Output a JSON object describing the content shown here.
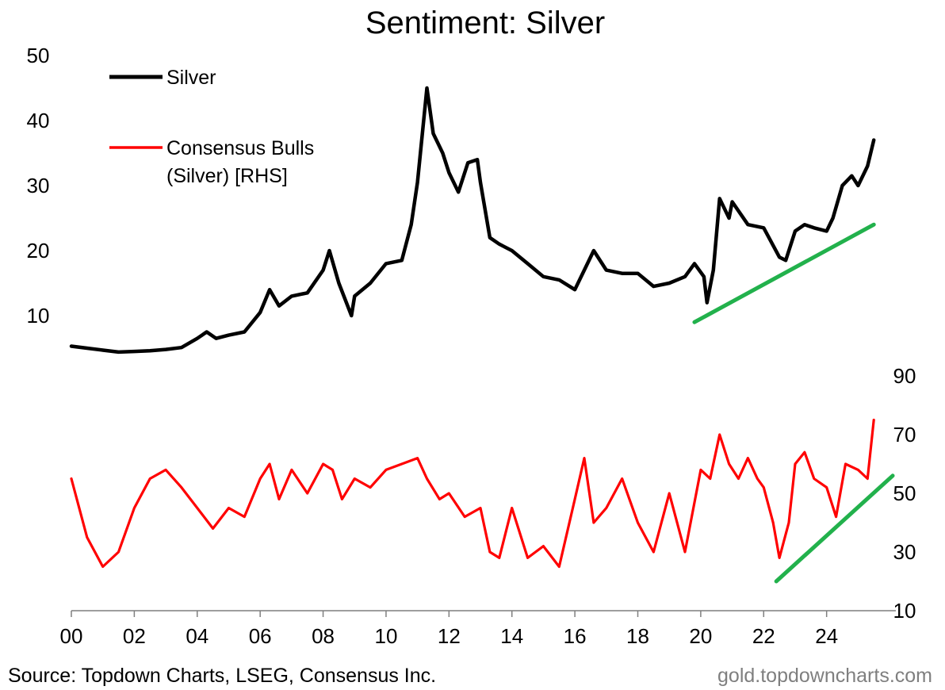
{
  "chart_data": {
    "type": "line",
    "title": "Sentiment: Silver",
    "x_tick_labels": [
      "00",
      "02",
      "04",
      "06",
      "08",
      "10",
      "12",
      "14",
      "16",
      "18",
      "20",
      "22",
      "24"
    ],
    "x_tick_years": [
      2000,
      2002,
      2004,
      2006,
      2008,
      2010,
      2012,
      2014,
      2016,
      2018,
      2020,
      2022,
      2024
    ],
    "xlim": [
      2000,
      2026.2
    ],
    "left_axis": {
      "ylim": [
        0,
        50
      ],
      "tick_labels": [
        "10",
        "20",
        "30",
        "40",
        "50"
      ],
      "tick_values": [
        10,
        20,
        30,
        40,
        50
      ]
    },
    "right_axis": {
      "ylim": [
        10,
        90
      ],
      "tick_labels": [
        "10",
        "30",
        "50",
        "70",
        "90"
      ],
      "tick_values": [
        10,
        30,
        50,
        70,
        90
      ]
    },
    "legend": [
      {
        "label": "Silver",
        "color": "#000000"
      },
      {
        "label_line1": "Consensus Bulls",
        "label_line2": "(Silver) [RHS]",
        "color": "#ff0000"
      }
    ],
    "series": [
      {
        "name": "Silver",
        "axis": "left",
        "color": "#000000",
        "x": [
          2000,
          2000.5,
          2001,
          2001.5,
          2002,
          2002.5,
          2003,
          2003.5,
          2004,
          2004.3,
          2004.6,
          2005,
          2005.5,
          2006,
          2006.3,
          2006.6,
          2007,
          2007.5,
          2008,
          2008.2,
          2008.5,
          2008.9,
          2009,
          2009.5,
          2010,
          2010.5,
          2010.8,
          2011,
          2011.3,
          2011.5,
          2011.8,
          2012,
          2012.3,
          2012.6,
          2012.9,
          2013,
          2013.3,
          2013.6,
          2014,
          2014.5,
          2015,
          2015.5,
          2016,
          2016.3,
          2016.6,
          2017,
          2017.5,
          2018,
          2018.5,
          2019,
          2019.5,
          2019.8,
          2020.1,
          2020.2,
          2020.4,
          2020.6,
          2020.9,
          2021,
          2021.5,
          2022,
          2022.5,
          2022.7,
          2023,
          2023.3,
          2023.6,
          2024,
          2024.2,
          2024.5,
          2024.8,
          2025,
          2025.3,
          2025.5
        ],
        "values": [
          5.3,
          5.0,
          4.7,
          4.4,
          4.5,
          4.6,
          4.8,
          5.1,
          6.5,
          7.5,
          6.5,
          7.0,
          7.5,
          10.5,
          14.0,
          11.5,
          13.0,
          13.5,
          17.0,
          20.0,
          15.0,
          10.0,
          13.0,
          15.0,
          18.0,
          18.5,
          24.0,
          30.5,
          45.0,
          38.0,
          35.0,
          32.0,
          29.0,
          33.5,
          34.0,
          30.5,
          22.0,
          21.0,
          20.0,
          18.0,
          16.0,
          15.5,
          14.0,
          17.0,
          20.0,
          17.0,
          16.5,
          16.5,
          14.5,
          15.0,
          16.0,
          18.0,
          16.0,
          12.0,
          17.0,
          28.0,
          25.0,
          27.5,
          24.0,
          23.5,
          19.0,
          18.5,
          23.0,
          24.0,
          23.5,
          23.0,
          25.0,
          30.0,
          31.5,
          30.0,
          33.0,
          37.0
        ]
      },
      {
        "name": "Consensus Bulls (Silver) [RHS]",
        "axis": "right",
        "color": "#ff0000",
        "x": [
          2000,
          2000.5,
          2001,
          2001.5,
          2002,
          2002.5,
          2003,
          2003.5,
          2004,
          2004.5,
          2005,
          2005.5,
          2006,
          2006.3,
          2006.6,
          2007,
          2007.5,
          2008,
          2008.3,
          2008.6,
          2009,
          2009.5,
          2010,
          2010.5,
          2011,
          2011.3,
          2011.7,
          2012,
          2012.5,
          2013,
          2013.3,
          2013.6,
          2014,
          2014.5,
          2015,
          2015.5,
          2016,
          2016.3,
          2016.6,
          2017,
          2017.5,
          2018,
          2018.5,
          2019,
          2019.5,
          2020,
          2020.3,
          2020.6,
          2020.9,
          2021.2,
          2021.5,
          2021.8,
          2022,
          2022.3,
          2022.5,
          2022.8,
          2023,
          2023.3,
          2023.6,
          2024,
          2024.3,
          2024.6,
          2025,
          2025.3,
          2025.5
        ],
        "values": [
          55,
          35,
          25,
          30,
          45,
          55,
          58,
          52,
          45,
          38,
          45,
          42,
          55,
          60,
          48,
          58,
          50,
          60,
          58,
          48,
          55,
          52,
          58,
          60,
          62,
          55,
          48,
          50,
          42,
          45,
          30,
          28,
          45,
          28,
          32,
          25,
          48,
          62,
          40,
          45,
          55,
          40,
          30,
          50,
          30,
          58,
          55,
          70,
          60,
          55,
          62,
          55,
          52,
          40,
          28,
          40,
          60,
          64,
          55,
          52,
          42,
          60,
          58,
          55,
          75
        ]
      }
    ]
  },
  "trendlines": [
    {
      "axis": "left",
      "x": [
        2019.8,
        2025.5
      ],
      "values": [
        9.0,
        24.0
      ],
      "color": "#22b14c"
    },
    {
      "axis": "right",
      "x": [
        2022.4,
        2026.1
      ],
      "values": [
        20,
        56
      ],
      "color": "#22b14c"
    }
  ],
  "footer": {
    "source": "Source: Topdown Charts, LSEG, Consensus Inc.",
    "brand": "gold.topdowncharts.com"
  },
  "colors": {
    "text": "#000000",
    "brand": "#7f7f7f",
    "axis": "#7f7f7f"
  }
}
